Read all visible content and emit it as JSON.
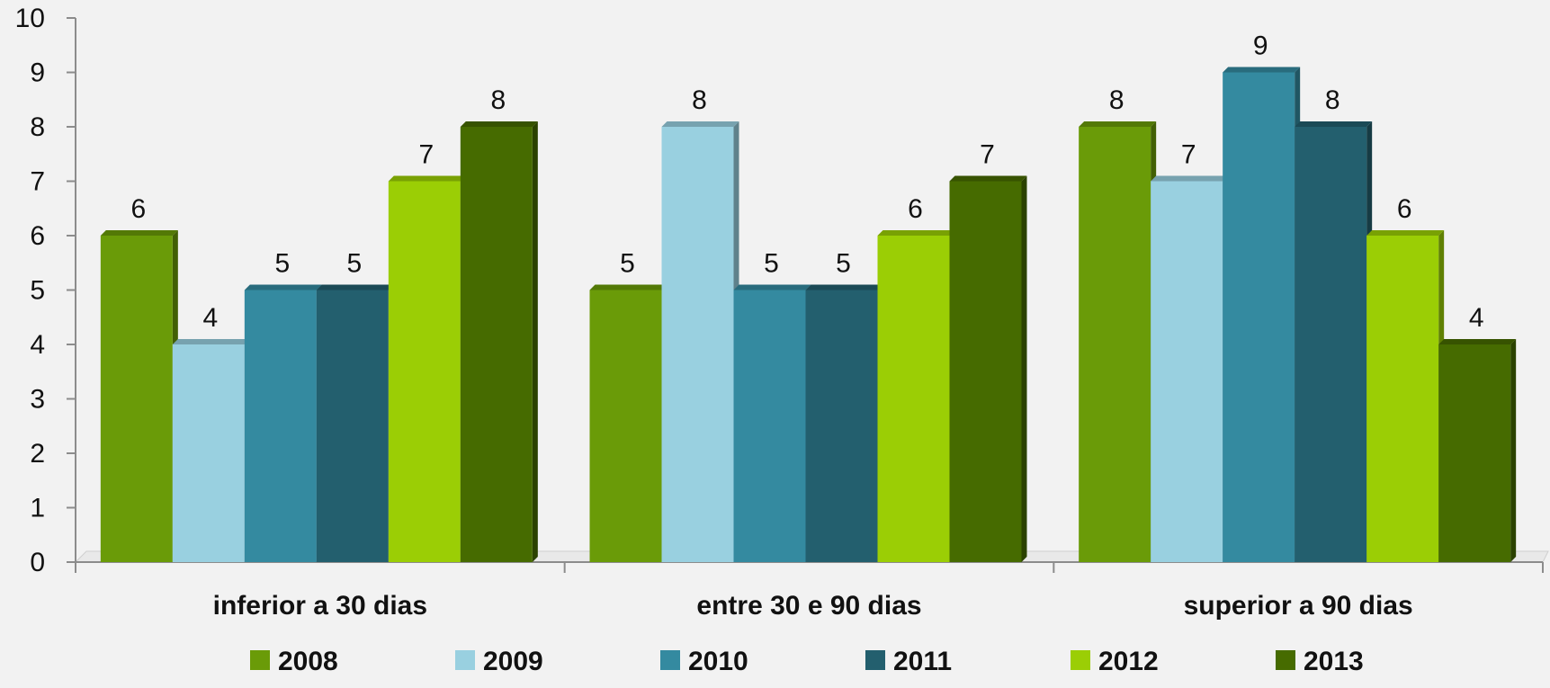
{
  "chart_data": {
    "type": "bar",
    "categories": [
      "inferior a 30 dias",
      "entre 30 e 90 dias",
      "superior a 90 dias"
    ],
    "series": [
      {
        "name": "2008",
        "values": [
          6,
          5,
          8
        ],
        "color": "#6a9b08"
      },
      {
        "name": "2009",
        "values": [
          4,
          8,
          7
        ],
        "color": "#99d0e0"
      },
      {
        "name": "2010",
        "values": [
          5,
          5,
          9
        ],
        "color": "#348aa0"
      },
      {
        "name": "2011",
        "values": [
          5,
          5,
          8
        ],
        "color": "#235f6e"
      },
      {
        "name": "2012",
        "values": [
          7,
          6,
          6
        ],
        "color": "#9bce05"
      },
      {
        "name": "2013",
        "values": [
          8,
          7,
          4
        ],
        "color": "#466b00"
      }
    ],
    "y_ticks": [
      "0",
      "1",
      "2",
      "3",
      "4",
      "5",
      "6",
      "7",
      "8",
      "9",
      "10"
    ],
    "ylim": [
      0,
      10
    ],
    "grid": false,
    "legend_position": "bottom",
    "data_labels": true,
    "style": "3d-bar"
  }
}
